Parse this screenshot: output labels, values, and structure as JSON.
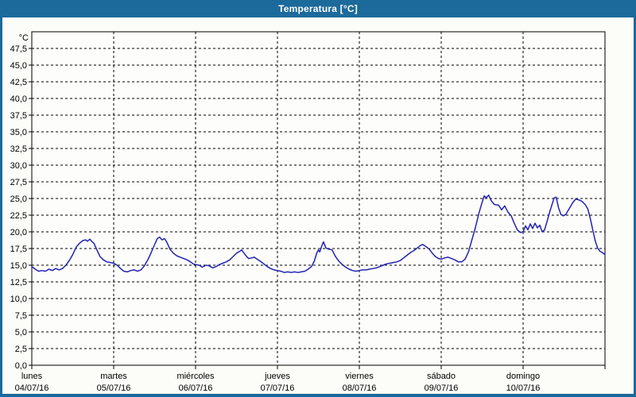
{
  "window": {
    "title": "Temperatura [°C]"
  },
  "colors": {
    "titlebar": "#1c699b",
    "border": "#1c699b",
    "content_background": "#fcfdf8",
    "plot_background": "#fdfdfb",
    "line": "#2222b2",
    "grid": "#000000",
    "frame": "#000000",
    "text": "#000000",
    "title_text": "#ffffff"
  },
  "chart_data": {
    "type": "line",
    "title": "Temperatura [°C]",
    "unit_label": "°C",
    "ylim": [
      0,
      50
    ],
    "ytick_step": 2.5,
    "grid": "dashed",
    "legend": "none",
    "ytick_labels": [
      {
        "value": 47.5,
        "label": "47,5"
      },
      {
        "value": 45.0,
        "label": "45,0"
      },
      {
        "value": 42.5,
        "label": "42,5"
      },
      {
        "value": 40.0,
        "label": "40,0"
      },
      {
        "value": 37.5,
        "label": "37,5"
      },
      {
        "value": 35.0,
        "label": "35,0"
      },
      {
        "value": 32.5,
        "label": "32,5"
      },
      {
        "value": 30.0,
        "label": "30,0"
      },
      {
        "value": 27.5,
        "label": "27,5"
      },
      {
        "value": 25.0,
        "label": "25,0"
      },
      {
        "value": 22.5,
        "label": "22,5"
      },
      {
        "value": 20.0,
        "label": "20,0"
      },
      {
        "value": 17.5,
        "label": "17,5"
      },
      {
        "value": 15.0,
        "label": "15,0"
      },
      {
        "value": 12.5,
        "label": "12,5"
      },
      {
        "value": 10.0,
        "label": "10,0"
      },
      {
        "value": 7.5,
        "label": "7,5"
      },
      {
        "value": 5.0,
        "label": "5,0"
      },
      {
        "value": 2.5,
        "label": "2,5"
      },
      {
        "value": 0.0,
        "label": "0,0"
      }
    ],
    "x_hours_total": 168,
    "x_days": [
      {
        "name": "lunes",
        "date": "04/07/16"
      },
      {
        "name": "martes",
        "date": "05/07/16"
      },
      {
        "name": "miércoles",
        "date": "06/07/16"
      },
      {
        "name": "jueves",
        "date": "07/07/16"
      },
      {
        "name": "viernes",
        "date": "08/07/16"
      },
      {
        "name": "sábado",
        "date": "09/07/16"
      },
      {
        "name": "domingo",
        "date": "10/07/16"
      }
    ],
    "series": [
      {
        "name": "Temperatura",
        "color": "#2222b2",
        "points": [
          [
            0,
            14.8
          ],
          [
            1,
            14.4
          ],
          [
            2,
            14.1
          ],
          [
            3,
            14.2
          ],
          [
            4,
            14.1
          ],
          [
            5,
            14.4
          ],
          [
            6,
            14.2
          ],
          [
            7,
            14.5
          ],
          [
            8,
            14.3
          ],
          [
            9,
            14.5
          ],
          [
            10,
            15.0
          ],
          [
            11,
            15.7
          ],
          [
            12,
            16.6
          ],
          [
            13,
            17.7
          ],
          [
            14,
            18.3
          ],
          [
            15,
            18.7
          ],
          [
            15.8,
            18.8
          ],
          [
            16.3,
            18.6
          ],
          [
            17,
            18.9
          ],
          [
            17.7,
            18.5
          ],
          [
            18.2,
            18.3
          ],
          [
            19,
            17.4
          ],
          [
            20,
            16.3
          ],
          [
            21,
            15.8
          ],
          [
            22,
            15.5
          ],
          [
            23,
            15.4
          ],
          [
            24,
            15.3
          ],
          [
            25,
            15.0
          ],
          [
            26,
            14.5
          ],
          [
            27,
            14.1
          ],
          [
            28,
            14.0
          ],
          [
            29,
            14.2
          ],
          [
            30,
            14.3
          ],
          [
            31,
            14.1
          ],
          [
            32,
            14.3
          ],
          [
            33,
            14.9
          ],
          [
            34,
            15.8
          ],
          [
            35,
            16.9
          ],
          [
            36,
            18.1
          ],
          [
            36.8,
            19.0
          ],
          [
            37.5,
            19.2
          ],
          [
            38.2,
            18.8
          ],
          [
            38.9,
            19.0
          ],
          [
            39.6,
            18.4
          ],
          [
            40.5,
            17.4
          ],
          [
            41.5,
            16.8
          ],
          [
            42.5,
            16.4
          ],
          [
            43.5,
            16.2
          ],
          [
            44.5,
            16.0
          ],
          [
            45.5,
            15.8
          ],
          [
            46.5,
            15.5
          ],
          [
            47.3,
            15.2
          ],
          [
            48,
            15.1
          ],
          [
            49,
            15.0
          ],
          [
            50,
            14.7
          ],
          [
            51,
            15.0
          ],
          [
            52,
            14.9
          ],
          [
            53,
            14.6
          ],
          [
            54,
            14.8
          ],
          [
            55,
            15.1
          ],
          [
            56,
            15.3
          ],
          [
            57,
            15.5
          ],
          [
            58,
            15.8
          ],
          [
            59,
            16.3
          ],
          [
            60,
            16.8
          ],
          [
            61,
            17.1
          ],
          [
            61.5,
            17.3
          ],
          [
            62.5,
            16.6
          ],
          [
            63.5,
            16.0
          ],
          [
            64.5,
            16.1
          ],
          [
            65.2,
            16.2
          ],
          [
            66,
            15.9
          ],
          [
            67,
            15.6
          ],
          [
            68,
            15.2
          ],
          [
            69,
            14.8
          ],
          [
            70,
            14.5
          ],
          [
            71,
            14.3
          ],
          [
            72,
            14.2
          ],
          [
            73,
            14.1
          ],
          [
            74,
            13.9
          ],
          [
            75,
            14.0
          ],
          [
            76,
            13.9
          ],
          [
            77,
            14.0
          ],
          [
            78,
            13.9
          ],
          [
            79,
            14.0
          ],
          [
            80,
            14.1
          ],
          [
            81,
            14.4
          ],
          [
            82,
            14.8
          ],
          [
            82.8,
            15.6
          ],
          [
            83.5,
            16.8
          ],
          [
            84,
            17.3
          ],
          [
            84.4,
            17.0
          ],
          [
            85,
            17.9
          ],
          [
            85.5,
            18.5
          ],
          [
            86.2,
            17.6
          ],
          [
            87,
            17.4
          ],
          [
            88,
            17.3
          ],
          [
            89,
            16.3
          ],
          [
            90,
            15.6
          ],
          [
            91,
            15.1
          ],
          [
            92,
            14.7
          ],
          [
            93,
            14.4
          ],
          [
            94,
            14.2
          ],
          [
            95,
            14.1
          ],
          [
            96,
            14.2
          ],
          [
            97,
            14.3
          ],
          [
            98,
            14.3
          ],
          [
            99,
            14.4
          ],
          [
            100,
            14.5
          ],
          [
            101,
            14.6
          ],
          [
            102,
            14.8
          ],
          [
            103,
            15.0
          ],
          [
            104,
            15.2
          ],
          [
            105,
            15.3
          ],
          [
            106,
            15.4
          ],
          [
            107,
            15.5
          ],
          [
            108,
            15.7
          ],
          [
            109,
            16.1
          ],
          [
            110,
            16.5
          ],
          [
            111,
            16.9
          ],
          [
            112,
            17.2
          ],
          [
            113,
            17.6
          ],
          [
            114,
            18.0
          ],
          [
            114.6,
            18.1
          ],
          [
            115.5,
            17.8
          ],
          [
            116.5,
            17.4
          ],
          [
            117.4,
            16.8
          ],
          [
            118.3,
            16.3
          ],
          [
            119.2,
            16.0
          ],
          [
            120,
            15.9
          ],
          [
            121,
            16.1
          ],
          [
            122,
            16.2
          ],
          [
            123,
            16.0
          ],
          [
            124,
            15.8
          ],
          [
            125,
            15.5
          ],
          [
            126,
            15.5
          ],
          [
            127,
            15.9
          ],
          [
            128,
            17.0
          ],
          [
            129,
            18.8
          ],
          [
            130,
            20.6
          ],
          [
            131,
            22.7
          ],
          [
            131.9,
            24.3
          ],
          [
            132.6,
            25.4
          ],
          [
            133.2,
            25.1
          ],
          [
            133.9,
            25.5
          ],
          [
            134.6,
            24.7
          ],
          [
            135.6,
            24.1
          ],
          [
            136.8,
            24.0
          ],
          [
            137.7,
            23.3
          ],
          [
            138.6,
            23.9
          ],
          [
            139.5,
            23.0
          ],
          [
            140.5,
            22.4
          ],
          [
            141.4,
            21.3
          ],
          [
            142.3,
            20.3
          ],
          [
            143.2,
            19.9
          ],
          [
            144,
            20.0
          ],
          [
            144.7,
            20.9
          ],
          [
            145.4,
            20.3
          ],
          [
            146.1,
            21.2
          ],
          [
            146.8,
            20.5
          ],
          [
            147.5,
            21.3
          ],
          [
            148.2,
            20.6
          ],
          [
            148.9,
            21.0
          ],
          [
            149.6,
            20.0
          ],
          [
            150.3,
            20.3
          ],
          [
            151,
            21.5
          ],
          [
            151.7,
            22.8
          ],
          [
            152.4,
            24.0
          ],
          [
            153.1,
            25.1
          ],
          [
            153.7,
            25.2
          ],
          [
            154.4,
            23.6
          ],
          [
            155.1,
            22.6
          ],
          [
            155.8,
            22.4
          ],
          [
            156.5,
            22.6
          ],
          [
            157.2,
            23.2
          ],
          [
            158,
            23.9
          ],
          [
            158.7,
            24.5
          ],
          [
            159.4,
            24.9
          ],
          [
            160.3,
            24.8
          ],
          [
            161.2,
            24.6
          ],
          [
            162.2,
            24.1
          ],
          [
            163,
            23.4
          ],
          [
            163.7,
            22.0
          ],
          [
            164.4,
            20.3
          ],
          [
            165.1,
            18.7
          ],
          [
            165.8,
            17.6
          ],
          [
            166.5,
            17.1
          ],
          [
            167.2,
            16.9
          ],
          [
            168,
            16.6
          ]
        ]
      }
    ]
  }
}
